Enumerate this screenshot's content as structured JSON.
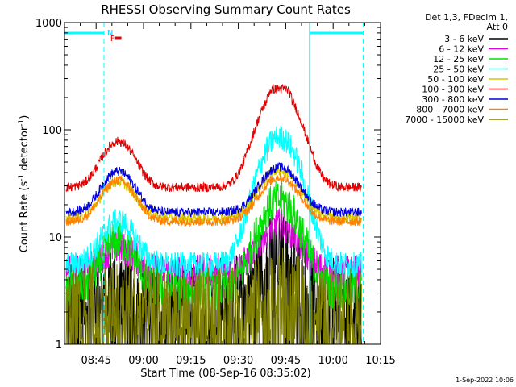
{
  "chart_data": {
    "type": "line",
    "title": "RHESSI Observing Summary Count Rates",
    "xlabel": "Start Time (08-Sep-16 08:35:02)",
    "ylabel": "Count Rate (s",
    "ylabel_sup1": "-1",
    "ylabel_mid": " detector",
    "ylabel_sup2": "-1",
    "ylabel_end": ")",
    "yscale": "log",
    "ylim": [
      1,
      1000
    ],
    "xlim_min": [
      0,
      100
    ],
    "x_ticks": [
      {
        "min": 10,
        "label": "08:45"
      },
      {
        "min": 25,
        "label": "09:00"
      },
      {
        "min": 40,
        "label": "09:15"
      },
      {
        "min": 55,
        "label": "09:30"
      },
      {
        "min": 70,
        "label": "09:45"
      },
      {
        "min": 85,
        "label": "10:00"
      },
      {
        "min": 100,
        "label": "10:15"
      }
    ],
    "y_ticks": [
      {
        "value": 1,
        "label": "1"
      },
      {
        "value": 10,
        "label": "10"
      },
      {
        "value": 100,
        "label": "100"
      },
      {
        "value": 1000,
        "label": "1000"
      }
    ],
    "legend_header1": "Det 1,3, FDecim 1,",
    "legend_header2": "Att 0",
    "series": [
      {
        "name": "3 - 6 keV",
        "color": "#000000",
        "base": 2.6,
        "peak1": 3.5,
        "peak2": 7,
        "noise": 0.45
      },
      {
        "name": "6 - 12 keV",
        "color": "#e000e0",
        "base": 4.8,
        "peak1": 8,
        "peak2": 13,
        "noise": 0.18
      },
      {
        "name": "12 - 25 keV",
        "color": "#00e000",
        "base": 3.2,
        "peak1": 9,
        "peak2": 22,
        "noise": 0.22
      },
      {
        "name": "25 - 50 keV",
        "color": "#00ffff",
        "base": 5.5,
        "peak1": 14,
        "peak2": 85,
        "noise": 0.14
      },
      {
        "name": "50 - 100 keV",
        "color": "#d8c800",
        "base": 15,
        "peak1": 33,
        "peak2": 42,
        "noise": 0.06
      },
      {
        "name": "100 - 300 keV",
        "color": "#e00000",
        "base": 29,
        "peak1": 78,
        "peak2": 240,
        "noise": 0.05
      },
      {
        "name": "300 - 800 keV",
        "color": "#0000e0",
        "base": 17,
        "peak1": 41,
        "peak2": 45,
        "noise": 0.05
      },
      {
        "name": "800 - 7000 keV",
        "color": "#ff8000",
        "base": 14,
        "peak1": 34,
        "peak2": 36,
        "noise": 0.05
      },
      {
        "name": "7000 - 15000 keV",
        "color": "#808000",
        "base": 1.9,
        "peak1": 2.4,
        "peak2": 3.0,
        "noise": 0.5
      }
    ],
    "annotations": [
      {
        "text": "N",
        "color": "#00c8ff"
      },
      {
        "text": "F",
        "color": "#e00000"
      }
    ],
    "night_intervals_min": [
      [
        0,
        12.5
      ],
      [
        77.5,
        94.5
      ]
    ],
    "flare_marker_min": [
      16,
      18
    ]
  },
  "footer": {
    "timestamp": "1-Sep-2022 10:06"
  },
  "colors": {
    "night": "#00ffff",
    "flare": "#e00000"
  }
}
